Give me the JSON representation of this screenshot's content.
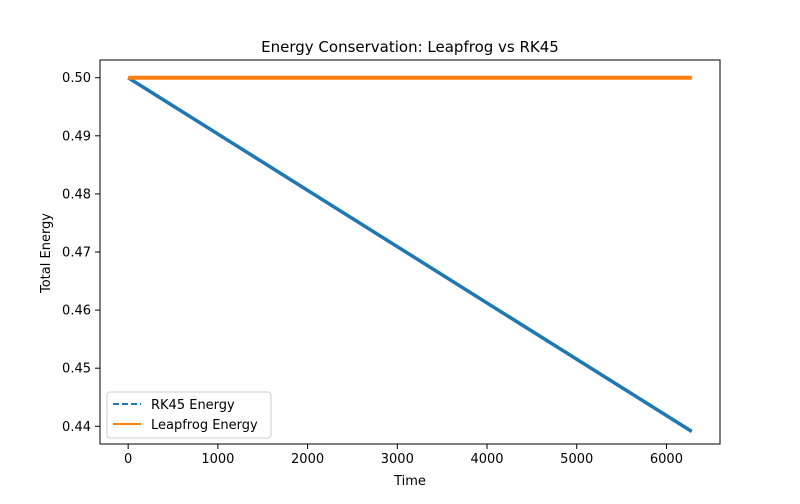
{
  "chart_data": {
    "type": "line",
    "title": "Energy Conservation: Leapfrog vs RK45",
    "xlabel": "Time",
    "ylabel": "Total Energy",
    "xlim": [
      -314,
      6597
    ],
    "ylim": [
      0.43695,
      0.50305
    ],
    "xticks": [
      0,
      1000,
      2000,
      3000,
      4000,
      5000,
      6000
    ],
    "xtick_labels": [
      "0",
      "1000",
      "2000",
      "3000",
      "4000",
      "5000",
      "6000"
    ],
    "yticks": [
      0.44,
      0.45,
      0.46,
      0.47,
      0.48,
      0.49,
      0.5
    ],
    "ytick_labels": [
      "0.44",
      "0.45",
      "0.46",
      "0.47",
      "0.48",
      "0.49",
      "0.50"
    ],
    "grid": false,
    "legend_position": "lower-left",
    "series": [
      {
        "name": "RK45 Energy",
        "color": "#1f77b4",
        "style": "dashed",
        "x": [
          0,
          6283
        ],
        "y": [
          0.5,
          0.4391
        ]
      },
      {
        "name": "Leapfrog Energy",
        "color": "#ff7f0e",
        "style": "solid",
        "x": [
          0,
          6283
        ],
        "y": [
          0.5,
          0.5
        ]
      }
    ]
  }
}
